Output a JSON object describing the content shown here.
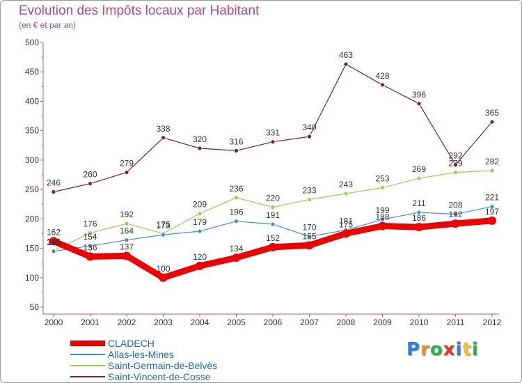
{
  "chart_data": {
    "type": "line",
    "title": "Evolution des Impôts locaux par Habitant",
    "subtitle": "(en € et par an)",
    "xlabel": "",
    "ylabel": "",
    "x": [
      "2000",
      "2001",
      "2002",
      "2003",
      "2004",
      "2005",
      "2006",
      "2007",
      "2008",
      "2009",
      "2010",
      "2011",
      "2012"
    ],
    "ylim": [
      50,
      500
    ],
    "yticks": [
      50,
      100,
      150,
      200,
      250,
      300,
      350,
      400,
      450,
      500
    ],
    "grid": false,
    "legend_position": "bottom-left",
    "series": [
      {
        "name": "CLADECH",
        "color": "#ee0000",
        "values": [
          162,
          136,
          137,
          100,
          120,
          134,
          152,
          155,
          175,
          188,
          186,
          192,
          197
        ]
      },
      {
        "name": "Allas-les-Mines",
        "color": "#3d8fcc",
        "values": [
          145,
          154,
          164,
          173,
          179,
          196,
          191,
          170,
          181,
          199,
          211,
          208,
          221
        ]
      },
      {
        "name": "Saint-Germain-de-Belvès",
        "color": "#8fd24e",
        "values": [
          146,
          176,
          192,
          175,
          209,
          236,
          220,
          233,
          243,
          253,
          269,
          279,
          282
        ]
      },
      {
        "name": "Saint-Vincent-de-Cosse",
        "color": "#7a1f25",
        "values": [
          246,
          260,
          279,
          338,
          320,
          316,
          331,
          340,
          463,
          428,
          396,
          292,
          365
        ]
      }
    ]
  },
  "logo": {
    "letters": [
      "P",
      "r",
      "o",
      "x",
      "i",
      "t",
      "i"
    ],
    "colors": [
      "#2b7fd6",
      "#f28c1e",
      "#2bb24c",
      "#e6332a",
      "#2b7fd6",
      "#f2c21e",
      "#2bb24c"
    ]
  }
}
